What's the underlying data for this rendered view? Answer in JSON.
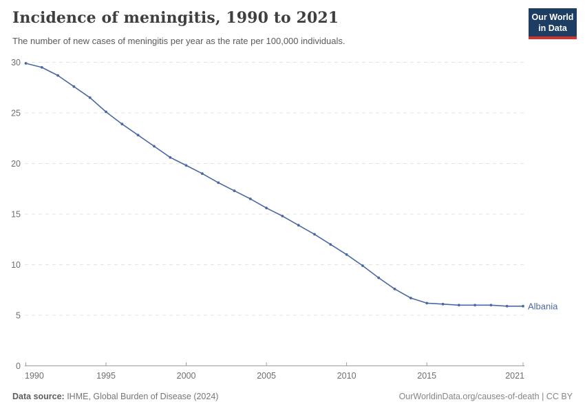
{
  "header": {
    "title": "Incidence of meningitis, 1990 to 2021",
    "subtitle": "The number of new cases of meningitis per year as the rate per 100,000 individuals.",
    "logo": {
      "line1": "Our World",
      "line2": "in Data"
    }
  },
  "chart_data": {
    "type": "line",
    "title": "Incidence of meningitis, 1990 to 2021",
    "xlabel": "",
    "ylabel": "",
    "x": [
      1990,
      1991,
      1992,
      1993,
      1994,
      1995,
      1996,
      1997,
      1998,
      1999,
      2000,
      2001,
      2002,
      2003,
      2004,
      2005,
      2006,
      2007,
      2008,
      2009,
      2010,
      2011,
      2012,
      2013,
      2014,
      2015,
      2016,
      2017,
      2018,
      2019,
      2020,
      2021
    ],
    "series": [
      {
        "name": "Albania",
        "color": "#4a68a3",
        "values": [
          29.9,
          29.5,
          28.7,
          27.6,
          26.5,
          25.1,
          23.9,
          22.8,
          21.7,
          20.6,
          19.8,
          19.0,
          18.1,
          17.3,
          16.5,
          15.6,
          14.8,
          13.9,
          13.0,
          12.0,
          11.0,
          9.9,
          8.7,
          7.6,
          6.7,
          6.2,
          6.1,
          6.0,
          6.0,
          6.0,
          5.9,
          5.9
        ]
      }
    ],
    "ylim": [
      0,
      30
    ],
    "yticks": [
      0,
      5,
      10,
      15,
      20,
      25,
      30
    ],
    "xticks": [
      1990,
      1995,
      2000,
      2005,
      2010,
      2015,
      2021
    ],
    "grid": "horizontal-dashed",
    "legend_position": "end-of-line-label"
  },
  "footer": {
    "source_label": "Data source:",
    "source_text": " IHME, Global Burden of Disease (2024)",
    "credit": "OurWorldinData.org/causes-of-death | CC BY"
  },
  "colors": {
    "accent_line": "#4a68a3",
    "logo_bg": "#1d3d63",
    "logo_stripe": "#d0342c",
    "gridline": "#e3e3e3",
    "axis": "#9c9c9c",
    "tick_text": "#6e6e6e",
    "title_text": "#3f3f3f",
    "subtitle_text": "#5a5a5a"
  }
}
